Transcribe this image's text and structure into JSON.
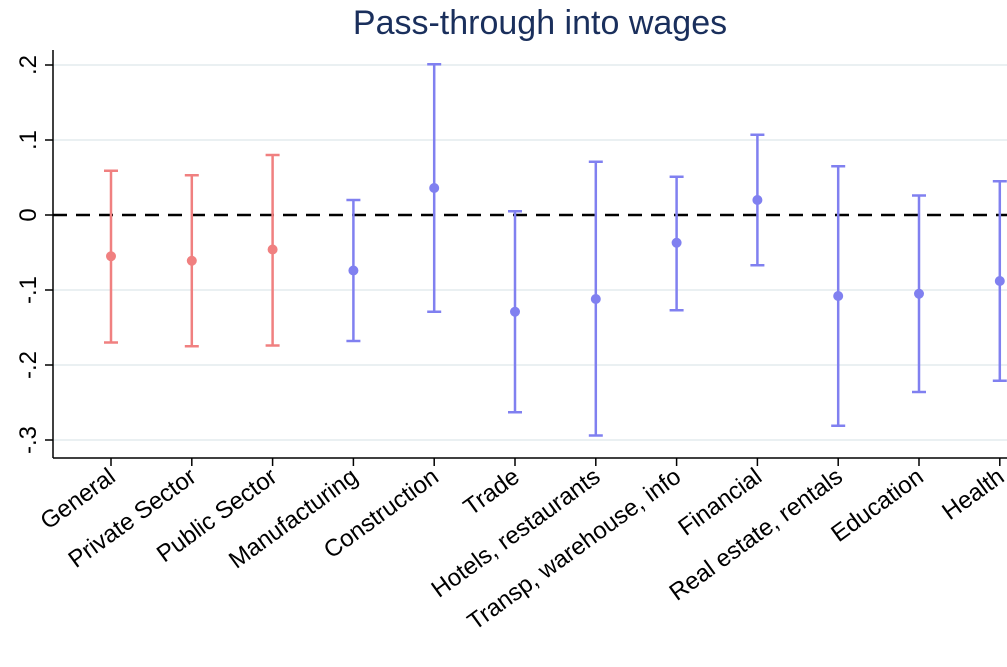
{
  "chart_data": {
    "type": "scatter",
    "title": "Pass-through into wages",
    "xlabel": "",
    "ylabel": "",
    "ylim": [
      -0.33,
      0.22
    ],
    "yticks": [
      0.2,
      0.1,
      0,
      -0.1,
      -0.2,
      -0.3
    ],
    "ytick_labels": [
      ".2",
      ".1",
      "0",
      "-.1",
      "-.2",
      "-.3"
    ],
    "grid": true,
    "reference_line": 0,
    "colors": {
      "aggregate": "#f08080",
      "sector": "#8080f0",
      "title": "#1a2f5c"
    },
    "categories": [
      "General",
      "Private Sector",
      "Public Sector",
      "Manufacturing",
      "Construction",
      "Trade",
      "Hotels, restaurants",
      "Transp, warehouse, info",
      "Financial",
      "Real estate, rentals",
      "Education",
      "Health"
    ],
    "series": [
      {
        "group": "aggregate",
        "categories": [
          "General",
          "Private Sector",
          "Public Sector"
        ],
        "estimate": [
          -0.055,
          -0.061,
          -0.046
        ],
        "ci_low": [
          -0.17,
          -0.175,
          -0.174
        ],
        "ci_high": [
          0.059,
          0.053,
          0.08
        ]
      },
      {
        "group": "sector",
        "categories": [
          "Manufacturing",
          "Construction",
          "Trade",
          "Hotels, restaurants",
          "Transp, warehouse, info",
          "Financial",
          "Real estate, rentals",
          "Education",
          "Health"
        ],
        "estimate": [
          -0.074,
          0.036,
          -0.129,
          -0.112,
          -0.037,
          0.02,
          -0.108,
          -0.105,
          -0.088
        ],
        "ci_low": [
          -0.168,
          -0.129,
          -0.263,
          -0.294,
          -0.127,
          -0.067,
          -0.281,
          -0.236,
          -0.221
        ],
        "ci_high": [
          0.02,
          0.201,
          0.005,
          0.071,
          0.051,
          0.107,
          0.065,
          0.026,
          0.045
        ]
      }
    ]
  }
}
